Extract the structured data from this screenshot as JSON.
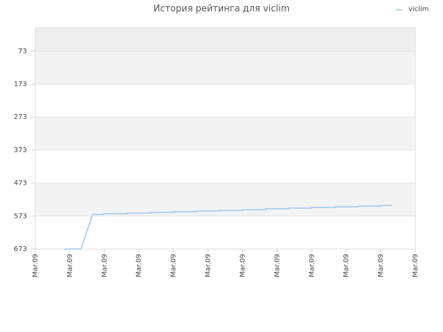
{
  "chart_data": {
    "type": "line",
    "title": "История рейтинга для viclim",
    "x": [
      0.84,
      1.32,
      1.66,
      1.98,
      1.98,
      2.67,
      2.67,
      3.33,
      3.33,
      4.01,
      4.01,
      4.67,
      4.67,
      5.33,
      5.33,
      5.99,
      5.99,
      6.67,
      6.67,
      7.33,
      7.33,
      8.0,
      8.0,
      8.68,
      8.68,
      9.34,
      9.34,
      10.0,
      10.0,
      10.32
    ],
    "series": [
      {
        "name": "viclim",
        "color": "#99c8f0",
        "values": [
          673,
          673,
          568,
          568,
          566,
          566,
          564,
          564,
          562,
          562,
          560,
          560,
          558,
          558,
          556,
          556,
          554,
          554,
          551,
          551,
          549,
          549,
          547,
          547,
          545,
          545,
          543,
          543,
          541,
          541
        ]
      }
    ],
    "xlim": [
      0,
      11
    ],
    "xticks": [
      {
        "value": 0,
        "label": "Mar.09"
      },
      {
        "value": 1,
        "label": "Mar.09"
      },
      {
        "value": 2,
        "label": "Mar.09"
      },
      {
        "value": 3,
        "label": "Mar.09"
      },
      {
        "value": 4,
        "label": "Mar.09"
      },
      {
        "value": 5,
        "label": "Mar.09"
      },
      {
        "value": 6,
        "label": "Mar.09"
      },
      {
        "value": 7,
        "label": "Mar.09"
      },
      {
        "value": 8,
        "label": "Mar.09"
      },
      {
        "value": 9,
        "label": "Mar.09"
      },
      {
        "value": 10,
        "label": "Mar.09"
      },
      {
        "value": 11,
        "label": "Mar.09"
      }
    ],
    "ylim": [
      673,
      2
    ],
    "yticks": [
      73,
      173,
      273,
      373,
      473,
      573,
      673
    ],
    "grid": true,
    "legend": "top-right"
  }
}
